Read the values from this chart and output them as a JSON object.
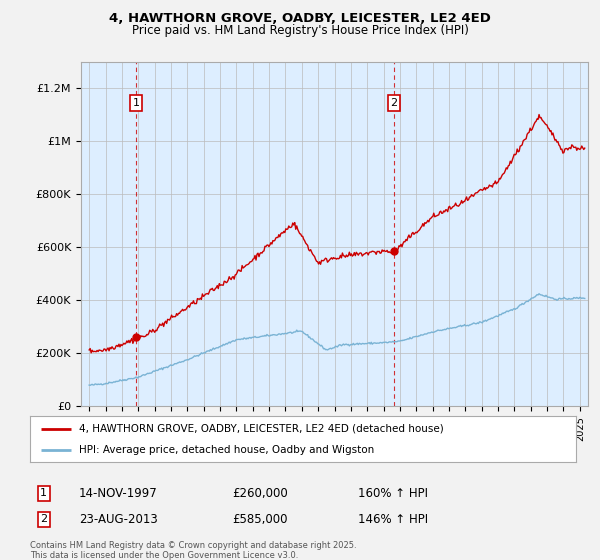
{
  "title_line1": "4, HAWTHORN GROVE, OADBY, LEICESTER, LE2 4ED",
  "title_line2": "Price paid vs. HM Land Registry's House Price Index (HPI)",
  "sale1_date": "14-NOV-1997",
  "sale1_price": 260000,
  "sale1_hpi": "160% ↑ HPI",
  "sale2_date": "23-AUG-2013",
  "sale2_price": 585000,
  "sale2_hpi": "146% ↑ HPI",
  "sale1_x": 1997.87,
  "sale2_x": 2013.64,
  "property_color": "#cc0000",
  "hpi_color": "#7ab3d4",
  "annotation_color": "#cc0000",
  "background_color": "#f2f2f2",
  "plot_bg_color": "#ddeeff",
  "grid_color": "#bbbbbb",
  "ylim_min": 0,
  "ylim_max": 1300000,
  "xlim_min": 1994.5,
  "xlim_max": 2025.5,
  "legend_property": "4, HAWTHORN GROVE, OADBY, LEICESTER, LE2 4ED (detached house)",
  "legend_hpi": "HPI: Average price, detached house, Oadby and Wigston",
  "footnote": "Contains HM Land Registry data © Crown copyright and database right 2025.\nThis data is licensed under the Open Government Licence v3.0.",
  "yticks": [
    0,
    200000,
    400000,
    600000,
    800000,
    1000000,
    1200000
  ],
  "ytick_labels": [
    "£0",
    "£200K",
    "£400K",
    "£600K",
    "£800K",
    "£1M",
    "£1.2M"
  ]
}
